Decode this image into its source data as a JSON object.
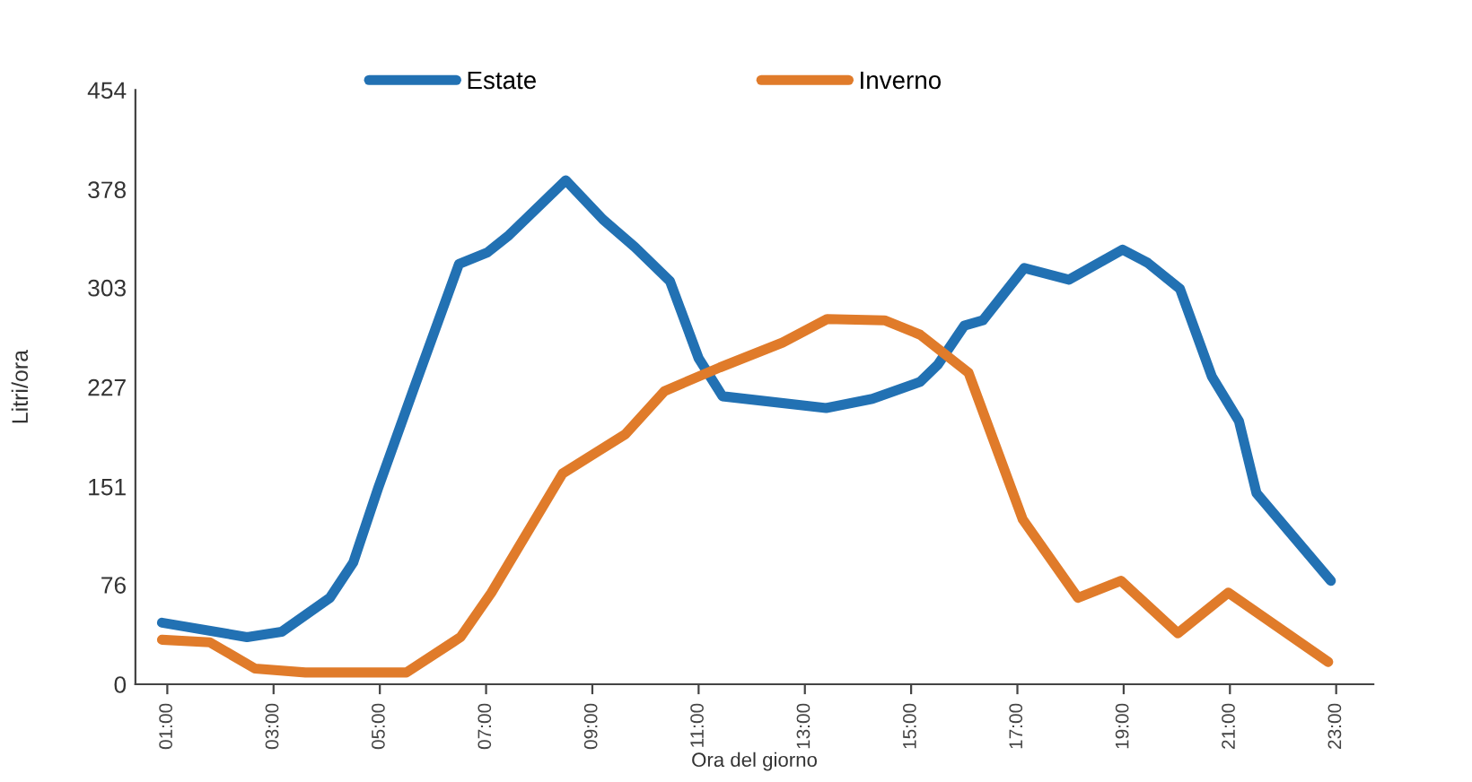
{
  "chart_data": {
    "type": "line",
    "xlabel": "Ora del giorno",
    "ylabel": "Litri/ora",
    "xlim": [
      0.4,
      23.7
    ],
    "ylim": [
      0,
      454
    ],
    "xticks": [
      {
        "value": 1,
        "label": "01:00"
      },
      {
        "value": 3,
        "label": "03:00"
      },
      {
        "value": 5,
        "label": "05:00"
      },
      {
        "value": 7,
        "label": "07:00"
      },
      {
        "value": 9,
        "label": "09:00"
      },
      {
        "value": 11,
        "label": "11:00"
      },
      {
        "value": 13,
        "label": "13:00"
      },
      {
        "value": 15,
        "label": "15:00"
      },
      {
        "value": 17,
        "label": "17:00"
      },
      {
        "value": 19,
        "label": "19:00"
      },
      {
        "value": 21,
        "label": "21:00"
      },
      {
        "value": 23,
        "label": "23:00"
      }
    ],
    "yticks": [
      0,
      76,
      151,
      227,
      303,
      378,
      454
    ],
    "grid": false,
    "legend": "top",
    "marker": "none",
    "line_style": "solid",
    "series": [
      {
        "name": "Estate",
        "color": "#2271b3",
        "x": [
          0.9,
          2.5,
          3.15,
          4.06,
          4.5,
          4.97,
          5.65,
          6.49,
          7.03,
          7.43,
          8.5,
          9.2,
          9.8,
          10.46,
          11.0,
          11.45,
          13.4,
          14.27,
          15.17,
          15.5,
          16.0,
          16.35,
          17.13,
          17.97,
          18.98,
          19.45,
          20.06,
          20.66,
          21.17,
          21.5,
          22.9
        ],
        "values": [
          47,
          36,
          40,
          66,
          93,
          150,
          227,
          321,
          330,
          343,
          385,
          355,
          334,
          308,
          249,
          220,
          211,
          218,
          231,
          244,
          274,
          278,
          318,
          309,
          332,
          322,
          302,
          235,
          201,
          146,
          79
        ]
      },
      {
        "name": "Inverno",
        "color": "#e07b2a",
        "x": [
          0.9,
          1.8,
          2.65,
          3.6,
          5.5,
          6.52,
          7.1,
          8.44,
          9.62,
          10.36,
          11.4,
          12.58,
          13.42,
          14.5,
          15.17,
          16.08,
          17.1,
          18.14,
          18.95,
          20.02,
          20.97,
          22.85
        ],
        "values": [
          34,
          32,
          12,
          9,
          9,
          36,
          70,
          161,
          191,
          224,
          242,
          261,
          279,
          278,
          267,
          238,
          126,
          66,
          79,
          39,
          70,
          17
        ]
      }
    ]
  }
}
